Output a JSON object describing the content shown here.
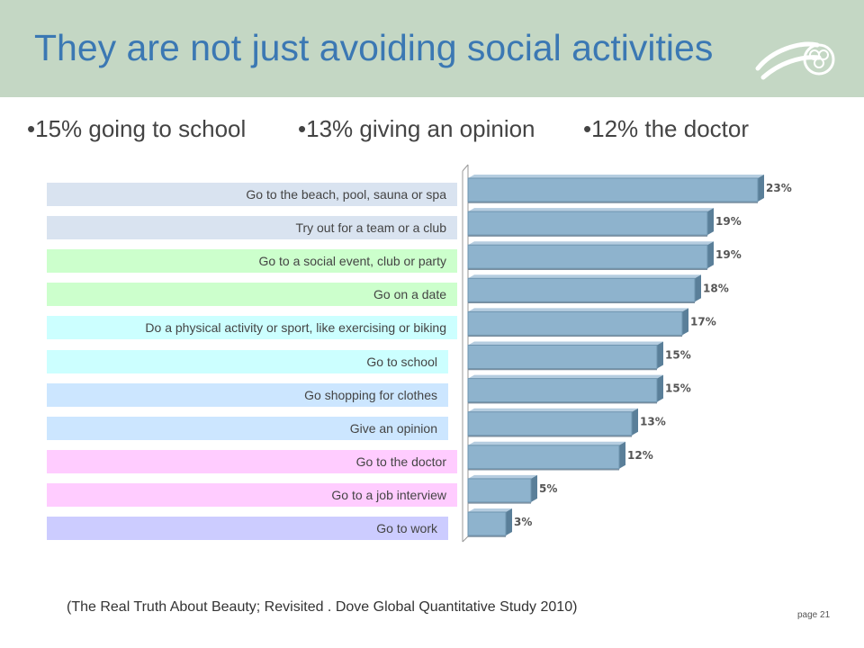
{
  "header": {
    "title": "They are not just avoiding social activities"
  },
  "headlines": [
    "•15% going to school",
    "•13% giving an opinion",
    "•12% the doctor"
  ],
  "colors": {
    "header_bg": "#c4d7c4",
    "title": "#3b78b3",
    "bar_front": "#8eb3cd",
    "bar_side": "#5a7f99",
    "group_blue": "#d9e3f0",
    "group_green": "#ccffcc",
    "group_cyan": "#ccffff",
    "group_lightblue": "#cce6ff",
    "group_pink": "#ffccff",
    "group_lavender": "#ccccff"
  },
  "chart_data": {
    "type": "bar",
    "orientation": "horizontal",
    "style": "3d",
    "categories": [
      "Go to the beach, pool, sauna or spa",
      "Try out for a team or a club",
      "Go to a social event, club or party",
      "Go on a date",
      "Do a physical activity or sport, like exercising or biking",
      "Go to school",
      "Go shopping for clothes",
      "Give an opinion",
      "Go to the doctor",
      "Go to a job interview",
      "Go to work"
    ],
    "values": [
      23,
      19,
      19,
      18,
      17,
      15,
      15,
      13,
      12,
      5,
      3
    ],
    "value_labels": [
      "23%",
      "19%",
      "19%",
      "18%",
      "17%",
      "15%",
      "15%",
      "13%",
      "12%",
      "5%",
      "3%"
    ],
    "xlim": [
      0,
      25
    ],
    "grid": false,
    "legend": "none",
    "label_groups": [
      "blue",
      "blue",
      "green",
      "green",
      "cyan",
      "cyan",
      "lightblue",
      "lightblue",
      "pink",
      "pink",
      "lavender"
    ]
  },
  "footer": {
    "source": "(The Real Truth About Beauty; Revisited . Dove Global Quantitative Study 2010)",
    "page": "page 21"
  }
}
